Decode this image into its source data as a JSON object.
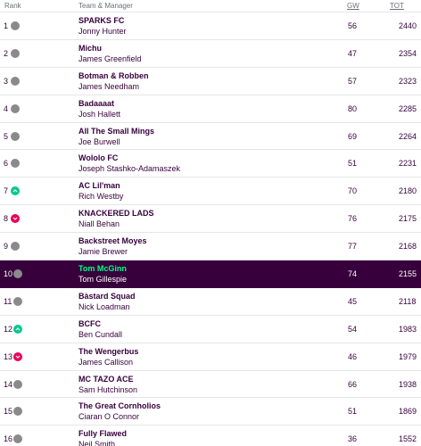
{
  "header": {
    "rank": "Rank",
    "team_manager": "Team & Manager",
    "gw": "GW",
    "tot": "TOT"
  },
  "rows": [
    {
      "rank": "1",
      "movement": "same",
      "team": "SPARKS FC",
      "manager": "Jonny Hunter",
      "gw": "56",
      "tot": "2440"
    },
    {
      "rank": "2",
      "movement": "same",
      "team": "Michu",
      "manager": "James Greenfield",
      "gw": "47",
      "tot": "2354"
    },
    {
      "rank": "3",
      "movement": "same",
      "team": "Botman & Robben",
      "manager": "James Needham",
      "gw": "57",
      "tot": "2323"
    },
    {
      "rank": "4",
      "movement": "same",
      "team": "Badaaaat",
      "manager": "Josh Hallett",
      "gw": "80",
      "tot": "2285"
    },
    {
      "rank": "5",
      "movement": "same",
      "team": "All The Small Mings",
      "manager": "Joe Burwell",
      "gw": "69",
      "tot": "2264"
    },
    {
      "rank": "6",
      "movement": "same",
      "team": "Wololo FC",
      "manager": "Joseph Stashko-Adamaszek",
      "gw": "51",
      "tot": "2231"
    },
    {
      "rank": "7",
      "movement": "up",
      "team": "AC Lil'man",
      "manager": "Rich Westby",
      "gw": "70",
      "tot": "2180"
    },
    {
      "rank": "8",
      "movement": "down",
      "team": "KNACKERED LADS",
      "manager": "Niall Behan",
      "gw": "76",
      "tot": "2175"
    },
    {
      "rank": "9",
      "movement": "same",
      "team": "Backstreet Moyes",
      "manager": "Jamie Brewer",
      "gw": "77",
      "tot": "2168"
    },
    {
      "rank": "10",
      "movement": "same",
      "team": "Tom McGinn",
      "manager": "Tom Gillespie",
      "gw": "74",
      "tot": "2155",
      "highlight": true
    },
    {
      "rank": "11",
      "movement": "same",
      "team": "Bàstard Squad",
      "manager": "Nick Loadman",
      "gw": "45",
      "tot": "2118"
    },
    {
      "rank": "12",
      "movement": "up",
      "team": "BCFC",
      "manager": "Ben Cundall",
      "gw": "54",
      "tot": "1983"
    },
    {
      "rank": "13",
      "movement": "down",
      "team": "The Wengerbus",
      "manager": "James Callison",
      "gw": "46",
      "tot": "1979"
    },
    {
      "rank": "14",
      "movement": "same",
      "team": "MC TAZO ACE",
      "manager": "Sam Hutchinson",
      "gw": "66",
      "tot": "1938"
    },
    {
      "rank": "15",
      "movement": "same",
      "team": "The Great Cornholios",
      "manager": "Ciaran O Connor",
      "gw": "51",
      "tot": "1869"
    },
    {
      "rank": "16",
      "movement": "same",
      "team": "Fully Flawed",
      "manager": "Neil Smith",
      "gw": "36",
      "tot": "1552"
    }
  ],
  "colors": {
    "brand": "#37003c",
    "highlight_team": "#00ff87",
    "up": "#00c98d",
    "down": "#e9005a",
    "same": "#8a8a8a"
  },
  "icons": {
    "same": "dot-icon",
    "up": "arrow-up-icon",
    "down": "arrow-down-icon"
  }
}
